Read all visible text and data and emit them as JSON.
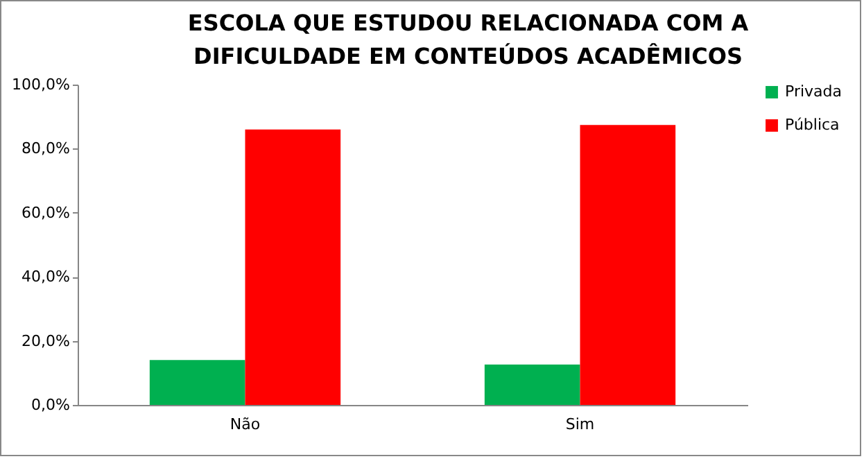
{
  "chart_data": {
    "type": "bar",
    "title": "ESCOLA QUE ESTUDOU RELACIONADA COM A\nDIFICULDADE EM CONTEÚDOS ACADÊMICOS",
    "categories": [
      "Não",
      "Sim"
    ],
    "series": [
      {
        "name": "Privada",
        "color": "#00b050",
        "values": [
          14.0,
          12.6
        ]
      },
      {
        "name": "Pública",
        "color": "#ff0000",
        "values": [
          86.0,
          87.4
        ]
      }
    ],
    "ylim": [
      0,
      100
    ],
    "yticks": [
      {
        "value": 0,
        "label": "0,0%"
      },
      {
        "value": 20,
        "label": "20,0%"
      },
      {
        "value": 40,
        "label": "40,0%"
      },
      {
        "value": 60,
        "label": "60,0%"
      },
      {
        "value": 80,
        "label": "80,0%"
      },
      {
        "value": 100,
        "label": "100,0%"
      }
    ],
    "grid": false,
    "legend": "right"
  }
}
